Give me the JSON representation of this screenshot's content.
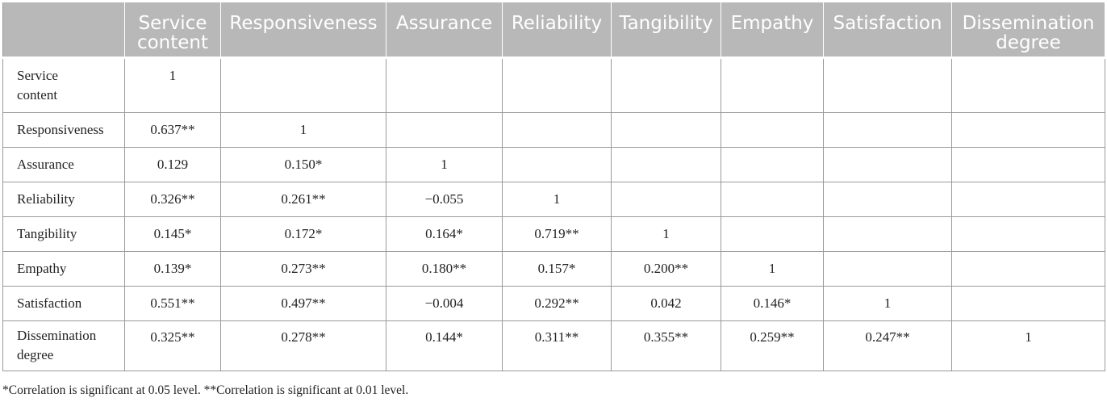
{
  "table": {
    "headers": [
      "",
      "Service\ncontent",
      "Responsiveness",
      "Assurance",
      "Reliability",
      "Tangibility",
      "Empathy",
      "Satisfaction",
      "Dissemination\ndegree"
    ],
    "rows": [
      {
        "label": "Service\ncontent",
        "cells": [
          "1",
          "",
          "",
          "",
          "",
          "",
          "",
          ""
        ]
      },
      {
        "label": "Responsiveness",
        "cells": [
          "0.637**",
          "1",
          "",
          "",
          "",
          "",
          "",
          ""
        ]
      },
      {
        "label": "Assurance",
        "cells": [
          "0.129",
          "0.150*",
          "1",
          "",
          "",
          "",
          "",
          ""
        ]
      },
      {
        "label": "Reliability",
        "cells": [
          "0.326**",
          "0.261**",
          "−0.055",
          "1",
          "",
          "",
          "",
          ""
        ]
      },
      {
        "label": "Tangibility",
        "cells": [
          "0.145*",
          "0.172*",
          "0.164*",
          "0.719**",
          "1",
          "",
          "",
          ""
        ]
      },
      {
        "label": "Empathy",
        "cells": [
          "0.139*",
          "0.273**",
          "0.180**",
          "0.157*",
          "0.200**",
          "1",
          "",
          ""
        ]
      },
      {
        "label": "Satisfaction",
        "cells": [
          "0.551**",
          "0.497**",
          "−0.004",
          "0.292**",
          "0.042",
          "0.146*",
          "1",
          ""
        ]
      },
      {
        "label": "Dissemination\ndegree",
        "cells": [
          "0.325**",
          "0.278**",
          "0.144*",
          "0.311**",
          "0.355**",
          "0.259**",
          "0.247**",
          "1"
        ]
      }
    ]
  },
  "footnote": "*Correlation is significant at 0.05 level. **Correlation is significant at 0.01 level.",
  "colors": {
    "header_bg": "#b8b8b8",
    "header_text": "#ffffff",
    "border": "#9a9a9a",
    "text": "#222222"
  }
}
